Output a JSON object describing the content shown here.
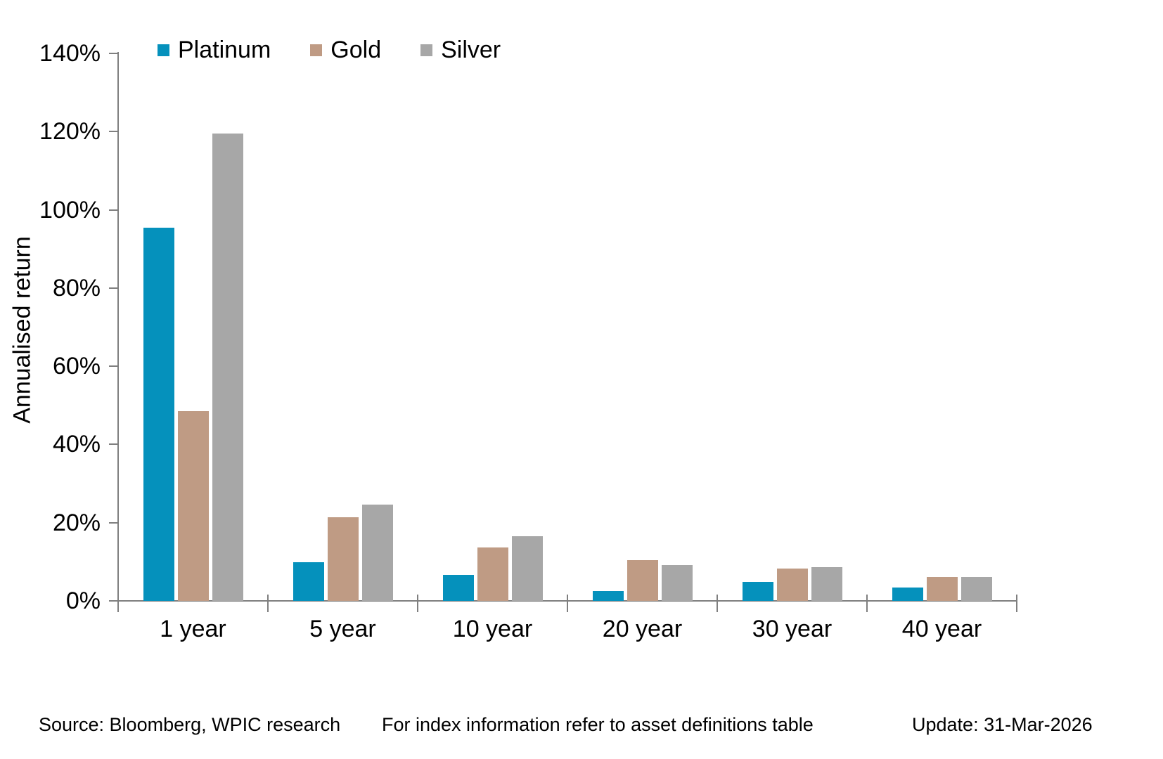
{
  "chart_data": {
    "type": "bar",
    "title": "",
    "xlabel": "",
    "ylabel": "Annualised return",
    "ylim": [
      0,
      140
    ],
    "ytick_step": 20,
    "ytick_suffix": "%",
    "grid": false,
    "legend_position": "top-left",
    "categories": [
      "1 year",
      "5 year",
      "10 year",
      "20 year",
      "30 year",
      "40 year"
    ],
    "series": [
      {
        "name": "Platinum",
        "color": "#0591BC",
        "values": [
          95.5,
          9.9,
          6.7,
          2.6,
          4.8,
          3.5
        ]
      },
      {
        "name": "Gold",
        "color": "#BF9B84",
        "values": [
          48.5,
          21.4,
          13.7,
          10.4,
          8.2,
          6.1
        ]
      },
      {
        "name": "Silver",
        "color": "#A7A7A7",
        "values": [
          119.5,
          24.6,
          16.6,
          9.2,
          8.6,
          6.1
        ]
      }
    ]
  },
  "footer": {
    "source": "Source: Bloomberg, WPIC research",
    "note": "For index information refer to asset definitions table",
    "update": "Update: 31-Mar-2026"
  },
  "colors": {
    "axis": "#7F7F7F",
    "text": "#000000",
    "background": "#FFFFFF"
  }
}
